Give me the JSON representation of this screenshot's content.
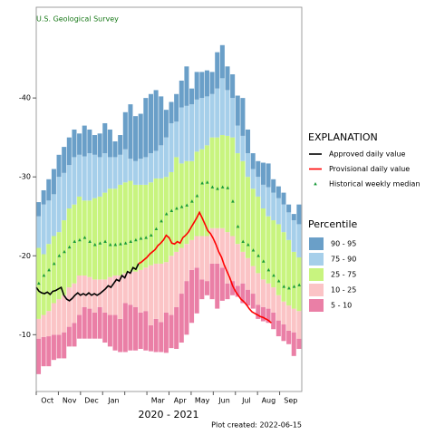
{
  "chart_data": {
    "type": "percentile_band",
    "source": "U.S. Geological Survey",
    "xlabel": "2020 - 2021",
    "note": "Plot created: 2022-06-15",
    "legend_title": "EXPLANATION",
    "percentile_title": "Percentile",
    "months": [
      "Oct",
      "Nov",
      "Dec",
      "Jan",
      null,
      "Mar",
      "Apr",
      "May",
      "Jun",
      "Jul",
      "Aug",
      "Sep"
    ],
    "ylim": [
      -2.8,
      -51.5
    ],
    "yticks": [
      -10,
      -20,
      -30,
      -40
    ],
    "percentiles": [
      {
        "name": "90 - 95",
        "color": "#6a9fc8"
      },
      {
        "name": "75 - 90",
        "color": "#a6cfea"
      },
      {
        "name": "25 - 75",
        "color": "#c8f47f"
      },
      {
        "name": "10 - 25",
        "color": "#fbc4c6"
      },
      {
        "name": "5 - 10",
        "color": "#ea7fa6"
      }
    ],
    "percentile_levels": [
      [
        -5.0,
        -9.5,
        -12,
        -21,
        -25,
        -26.8
      ],
      [
        -6.0,
        -9.7,
        -12.5,
        -20.2,
        -26.5,
        -28.3
      ],
      [
        -6.0,
        -9.8,
        -13,
        -21.5,
        -27,
        -29.7
      ],
      [
        -6.8,
        -10,
        -14,
        -22.5,
        -27.8,
        -31
      ],
      [
        -7,
        -10,
        -14.5,
        -23,
        -30,
        -32.8
      ],
      [
        -7,
        -10.3,
        -15,
        -24.5,
        -30.5,
        -33.8
      ],
      [
        -8.5,
        -11,
        -16,
        -26,
        -31.5,
        -35
      ],
      [
        -8.5,
        -11.5,
        -16.5,
        -26.5,
        -32.5,
        -36
      ],
      [
        -9.5,
        -12.5,
        -17.5,
        -27.5,
        -32.8,
        -35.5
      ],
      [
        -9.5,
        -13.5,
        -17.5,
        -27,
        -32.6,
        -36.5
      ],
      [
        -9.5,
        -13.3,
        -17.3,
        -27,
        -33,
        -36
      ],
      [
        -9.5,
        -12.8,
        -17,
        -27.3,
        -32.8,
        -35.3
      ],
      [
        -9.5,
        -13.5,
        -17,
        -27.5,
        -32.5,
        -35.5
      ],
      [
        -9,
        -12.8,
        -17,
        -28,
        -33,
        -36.8
      ],
      [
        -8.5,
        -12.5,
        -17.3,
        -28.5,
        -32.5,
        -36
      ],
      [
        -8,
        -12.5,
        -17.5,
        -28.5,
        -32.5,
        -34.5
      ],
      [
        -7.8,
        -12,
        -17.5,
        -29,
        -32.8,
        -35.3
      ],
      [
        -7.8,
        -14,
        -17.8,
        -29.3,
        -33.5,
        -38.2
      ],
      [
        -8,
        -13.8,
        -18,
        -29.5,
        -32.3,
        -39.2
      ],
      [
        -8,
        -13.5,
        -18,
        -29,
        -32,
        -37.7
      ],
      [
        -8.2,
        -12.8,
        -18.2,
        -29,
        -32.3,
        -38
      ],
      [
        -8,
        -13,
        -18.5,
        -29,
        -32.5,
        -40
      ],
      [
        -7.9,
        -11.2,
        -18.8,
        -29.3,
        -33,
        -40.5
      ],
      [
        -7.8,
        -12,
        -19,
        -29.8,
        -33.3,
        -41
      ],
      [
        -7.8,
        -11.6,
        -19,
        -29.8,
        -34,
        -40.2
      ],
      [
        -7.7,
        -12.8,
        -19.2,
        -30,
        -35,
        -38.5
      ],
      [
        -8.3,
        -12.5,
        -20,
        -30.6,
        -36.8,
        -39.5
      ],
      [
        -8.2,
        -13.5,
        -20.5,
        -32.5,
        -37,
        -40.5
      ],
      [
        -9,
        -15.2,
        -21,
        -31.7,
        -38.8,
        -42.2
      ],
      [
        -10,
        -16.8,
        -21.5,
        -32,
        -39,
        -44
      ],
      [
        -11.5,
        -18.2,
        -22,
        -32,
        -39.2,
        -41.2
      ],
      [
        -12.7,
        -18.5,
        -22.5,
        -33.2,
        -39.8,
        -43.3
      ],
      [
        -14.5,
        -17,
        -22.5,
        -33.5,
        -40,
        -43.3
      ],
      [
        -15,
        -16.8,
        -22.5,
        -34,
        -40.2,
        -43.5
      ],
      [
        -14.5,
        -19,
        -23.5,
        -35,
        -40.5,
        -43.3
      ],
      [
        -13.3,
        -19,
        -23.5,
        -35,
        -41.2,
        -45.8
      ],
      [
        -14.3,
        -18.5,
        -23.5,
        -35.3,
        -42.5,
        -46.7
      ],
      [
        -14.5,
        -16.5,
        -23,
        -35.2,
        -41,
        -44
      ],
      [
        -15,
        -16.8,
        -22.5,
        -35,
        -40,
        -43
      ],
      [
        -14.8,
        -16.2,
        -21.5,
        -33,
        -36.5,
        -40.3
      ],
      [
        -14,
        -16.5,
        -20.5,
        -32,
        -35.2,
        -40
      ],
      [
        -13.7,
        -15.7,
        -19.7,
        -30,
        -33,
        -36
      ],
      [
        -13.3,
        -15.2,
        -18.7,
        -28.5,
        -31,
        -33
      ],
      [
        -12,
        -13.8,
        -17.8,
        -27.5,
        -30,
        -32
      ],
      [
        -11.7,
        -13.5,
        -17,
        -26,
        -29,
        -31.8
      ],
      [
        -11.5,
        -13.3,
        -16.5,
        -25,
        -28.7,
        -31.7
      ],
      [
        -10.7,
        -12.8,
        -16,
        -24.5,
        -28,
        -29.7
      ],
      [
        -9.8,
        -11.8,
        -15,
        -24,
        -27.3,
        -28.8
      ],
      [
        -9.2,
        -11.3,
        -14.2,
        -23,
        -26.5,
        -28
      ],
      [
        -8.8,
        -10.5,
        -13.7,
        -22,
        -25.5,
        -26.5
      ],
      [
        -7.3,
        -10.3,
        -13.3,
        -20.5,
        -24.5,
        -25.3
      ],
      [
        -8.2,
        -9.5,
        -13,
        -19.8,
        -24,
        -26.5
      ]
    ],
    "series": [
      {
        "name": "Approved daily value",
        "color": "#000000",
        "values": [
          -16,
          -15.5,
          -15.3,
          -15.2,
          -15.4,
          -15.1,
          -15.5,
          -15.6,
          -15.8,
          -16,
          -15,
          -14.5,
          -14.3,
          -14.6,
          -15,
          -15.3,
          -15,
          -15.2,
          -15,
          -15.3,
          -15,
          -15.2,
          -15,
          -15.2,
          -15.5,
          -15.8,
          -16.2,
          -16,
          -16.5,
          -17,
          -16.8,
          -17.5,
          -17.2,
          -18,
          -17.8,
          -18.5,
          -18.3,
          -19,
          null,
          null,
          null,
          null,
          null,
          null,
          null,
          null,
          null,
          null,
          null,
          null,
          null,
          null,
          null,
          null,
          null,
          null,
          null,
          null,
          null,
          null,
          null,
          null,
          null,
          null,
          null,
          null,
          null,
          null,
          null,
          null,
          null,
          null,
          null,
          null,
          null,
          null,
          null,
          null,
          null,
          null,
          null,
          null,
          null,
          null,
          null,
          null,
          null,
          null,
          null,
          null,
          null,
          null,
          null,
          null,
          null,
          null
        ]
      },
      {
        "name": "Provisional daily value",
        "color": "#ff0000",
        "values": [
          null,
          null,
          null,
          null,
          null,
          null,
          null,
          null,
          null,
          null,
          null,
          null,
          null,
          null,
          null,
          null,
          null,
          null,
          null,
          null,
          null,
          null,
          null,
          null,
          null,
          null,
          null,
          null,
          null,
          null,
          null,
          null,
          null,
          null,
          null,
          null,
          null,
          -19,
          -19.2,
          -19.5,
          -19.8,
          -20.2,
          -20.5,
          -20.8,
          -21.3,
          -21.6,
          -22,
          -22.6,
          -22.3,
          -21.6,
          -21.5,
          -21.8,
          -21.6,
          -22.3,
          -22.6,
          -23,
          -23.6,
          -24.2,
          -24.8,
          -25.5,
          -24.8,
          -24,
          -23.2,
          -22.8,
          -22.2,
          -21.4,
          -20.5,
          -19.8,
          -18.8,
          -18,
          -17.2,
          -16.2,
          -15.5,
          -15,
          -14.5,
          -14.2,
          -13.8,
          -13.3,
          -12.9,
          -12.7,
          -12.5,
          -12.3,
          -12.2,
          -12,
          -11.8,
          -11.5,
          null,
          null,
          null,
          null,
          null,
          null
        ]
      }
    ],
    "median": {
      "name": "Historical weekly median",
      "color": "#1a9a3a",
      "values": [
        -16.5,
        -17.5,
        -18.2,
        -19,
        -20,
        -20.5,
        -21.1,
        -21.8,
        -22,
        -22.3,
        -21.8,
        -21.4,
        -21.6,
        -21.8,
        -21.4,
        -21.4,
        -21.5,
        -21.6,
        -21.8,
        -22,
        -22.2,
        -22.3,
        -22.6,
        -23.4,
        -24.4,
        -25.3,
        -25.7,
        -26,
        -26.2,
        -26.4,
        -26.9,
        -27.6,
        -29.2,
        -29.3,
        -28.7,
        -28.5,
        -28.7,
        -28.6,
        -26.9,
        -23.7,
        -21.8,
        -21.4,
        -20.7,
        -20,
        -19.3,
        -18.2,
        -17.5,
        -16.8,
        -16.1,
        -15.9,
        -16.1,
        -16.3
      ]
    }
  }
}
